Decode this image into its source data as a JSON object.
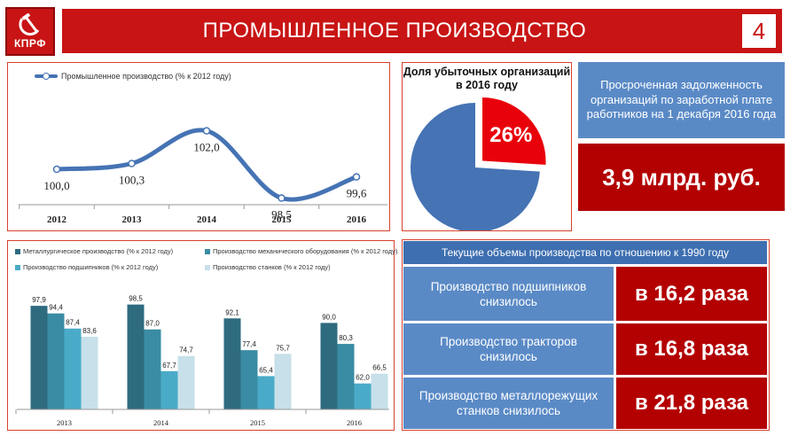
{
  "header": {
    "logo_text": "КПРФ",
    "title": "ПРОМЫШЛЕННОЕ ПРОИЗВОДСТВО",
    "page_number": "4"
  },
  "colors": {
    "brand_red": "#c81414",
    "box_blue": "#5a8ac6",
    "header_blue": "#3e6fb0",
    "value_red": "#b30000"
  },
  "chart_data": [
    {
      "type": "line",
      "series": [
        {
          "name": "Промышленное производство (% к 2012 году)",
          "values": [
            100.0,
            100.3,
            102.0,
            98.5,
            99.6
          ]
        }
      ],
      "categories": [
        "2012",
        "2013",
        "2014",
        "2015",
        "2016"
      ],
      "value_labels": [
        "100,0",
        "100,3",
        "102,0",
        "98,5",
        "99,6"
      ],
      "ylim": [
        97,
        103
      ],
      "grid": false,
      "legend": "top-left"
    },
    {
      "type": "pie",
      "title": "Доля убыточных организаций в 2016 году",
      "values": [
        74,
        26
      ],
      "highlight_label": "26%",
      "colors": [
        "#4573b4",
        "#e8000b"
      ]
    },
    {
      "type": "bar",
      "categories": [
        "2013",
        "2014",
        "2015",
        "2016"
      ],
      "series": [
        {
          "name": "Металлургическое производство (% к 2012 году)",
          "values": [
            97.9,
            98.5,
            92.1,
            90.0
          ],
          "labels": [
            "97,9",
            "98,5",
            "92,1",
            "90,0"
          ],
          "color": "#2e6b7f"
        },
        {
          "name": "Производство механического оборудования  (% к 2012 году)",
          "values": [
            94.4,
            87.0,
            77.4,
            80.3
          ],
          "labels": [
            "94,4",
            "87,0",
            "77,4",
            "80,3"
          ],
          "color": "#3a8ca4"
        },
        {
          "name": "Производство подшипников  (% к 2012 году)",
          "values": [
            87.4,
            67.7,
            65.4,
            62.0
          ],
          "labels": [
            "87,4",
            "67,7",
            "65,4",
            "62,0"
          ],
          "color": "#4aabc8"
        },
        {
          "name": "Производство станков  (% к 2012 году)",
          "values": [
            83.6,
            74.7,
            75.7,
            66.5
          ],
          "labels": [
            "83,6",
            "74,7",
            "75,7",
            "66,5"
          ],
          "color": "#c7e0ea"
        }
      ],
      "ylim": [
        50,
        100
      ],
      "grid": false,
      "legend": "top"
    }
  ],
  "debt": {
    "label": "Просроченная задолженность организаций по заработной плате работников на 1 декабря 2016 года",
    "value": "3,9 млрд. руб."
  },
  "production_1990": {
    "header": "Текущие объемы производства по отношению к 1990 году",
    "rows": [
      {
        "label": "Производство подшипников снизилось",
        "value": "в 16,2 раза"
      },
      {
        "label": "Производство тракторов снизилось",
        "value": "в 16,8 раза"
      },
      {
        "label": "Производство металлорежущих станков снизилось",
        "value": "в 21,8 раза"
      }
    ]
  }
}
